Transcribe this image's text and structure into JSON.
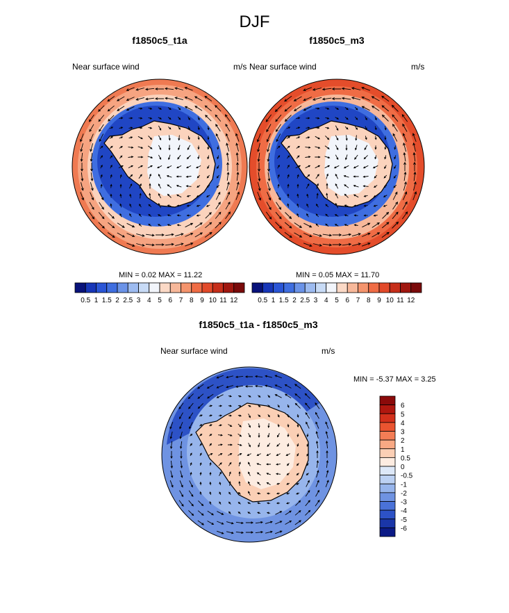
{
  "title": "DJF",
  "panels": [
    {
      "id": "t1a",
      "title": "f1850c5_t1a",
      "left_label": "Near surface wind",
      "right_label": "m/s",
      "min_max_label": "MIN =   0.02 MAX =  11.22"
    },
    {
      "id": "m3",
      "title": "f1850c5_m3",
      "left_label": "Near surface wind",
      "right_label": "m/s",
      "min_max_label": "MIN =   0.05 MAX =  11.70"
    },
    {
      "id": "diff",
      "title": "f1850c5_t1a - f1850c5_m3",
      "left_label": "Near surface wind",
      "right_label": "m/s",
      "min_max_label": "MIN =  -5.37 MAX =   3.25"
    }
  ],
  "chart_data": [
    {
      "type": "heatmap",
      "title": "f1850c5_t1a",
      "projection": "south-polar stereographic",
      "variable": "Near surface wind",
      "units": "m/s",
      "min": 0.02,
      "max": 11.22,
      "colorbar_levels": [
        "0.5",
        "1",
        "1.5",
        "2",
        "2.5",
        "3",
        "4",
        "5",
        "6",
        "7",
        "8",
        "9",
        "10",
        "11",
        "12"
      ],
      "colorbar_orientation": "horizontal"
    },
    {
      "type": "heatmap",
      "title": "f1850c5_m3",
      "projection": "south-polar stereographic",
      "variable": "Near surface wind",
      "units": "m/s",
      "min": 0.05,
      "max": 11.7,
      "colorbar_levels": [
        "0.5",
        "1",
        "1.5",
        "2",
        "2.5",
        "3",
        "4",
        "5",
        "6",
        "7",
        "8",
        "9",
        "10",
        "11",
        "12"
      ],
      "colorbar_orientation": "horizontal"
    },
    {
      "type": "heatmap",
      "title": "f1850c5_t1a - f1850c5_m3",
      "projection": "south-polar stereographic",
      "variable": "Near surface wind",
      "units": "m/s",
      "min": -5.37,
      "max": 3.25,
      "colorbar_levels": [
        "6",
        "5",
        "4",
        "3",
        "2",
        "1",
        "0.5",
        "0",
        "-0.5",
        "-1",
        "-2",
        "-3",
        "-4",
        "-5",
        "-6"
      ],
      "colorbar_orientation": "vertical"
    }
  ],
  "colors": {
    "abs_palette": [
      "#08127a",
      "#1736b8",
      "#2a55d6",
      "#3f6ee0",
      "#6b93e8",
      "#9dbbf0",
      "#c8dbf6",
      "#f2f5fb",
      "#fbd9c6",
      "#f7b89a",
      "#f4946d",
      "#ef6c45",
      "#e24a2a",
      "#c62e1a",
      "#a0170f",
      "#7a0a0a"
    ],
    "diff_palette": [
      "#8b0a0a",
      "#b0170f",
      "#d3301b",
      "#ea5430",
      "#f47d55",
      "#f8a984",
      "#fbcfb5",
      "#fdece1",
      "#dde8f8",
      "#bcd1f3",
      "#97b5ec",
      "#6f93e2",
      "#4a72d8",
      "#2d52c6",
      "#1a36a8",
      "#0b1a86"
    ],
    "coast": "#000000",
    "arrow": "#000000"
  }
}
